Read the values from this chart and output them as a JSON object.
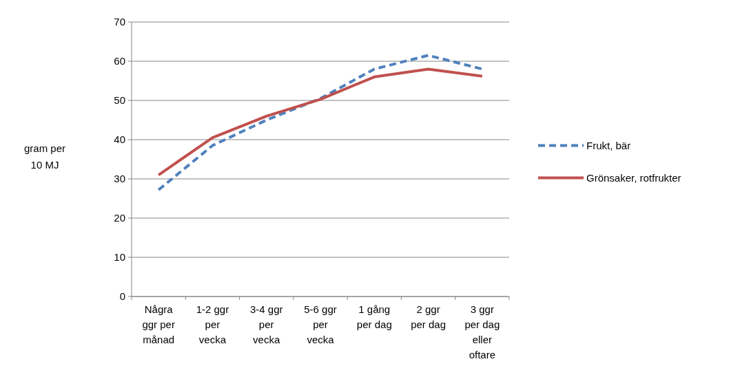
{
  "chart_data": {
    "type": "line",
    "ylabel": "gram per 10 MJ",
    "categories": [
      "Några ggr per månad",
      "1-2 ggr per vecka",
      "3-4 ggr per vecka",
      "5-6 ggr per vecka",
      "1 gång per dag",
      "2 ggr per dag",
      "3 ggr per dag eller oftare"
    ],
    "series": [
      {
        "name": "Frukt, bär",
        "color": "#4f81bd",
        "line_style": "dashed",
        "values": [
          27.2,
          38.5,
          45,
          50.5,
          58,
          61.5,
          58
        ]
      },
      {
        "name": "Grönsaker, rotfrukter",
        "color": "#c0504d",
        "line_style": "solid",
        "values": [
          31,
          40.5,
          46,
          50.3,
          56,
          58,
          56.2
        ]
      }
    ],
    "ylim": [
      0,
      70
    ],
    "yticks": [
      0,
      10,
      20,
      30,
      40,
      50,
      60,
      70
    ],
    "grid": "y",
    "legend": "right",
    "marker": "none"
  }
}
